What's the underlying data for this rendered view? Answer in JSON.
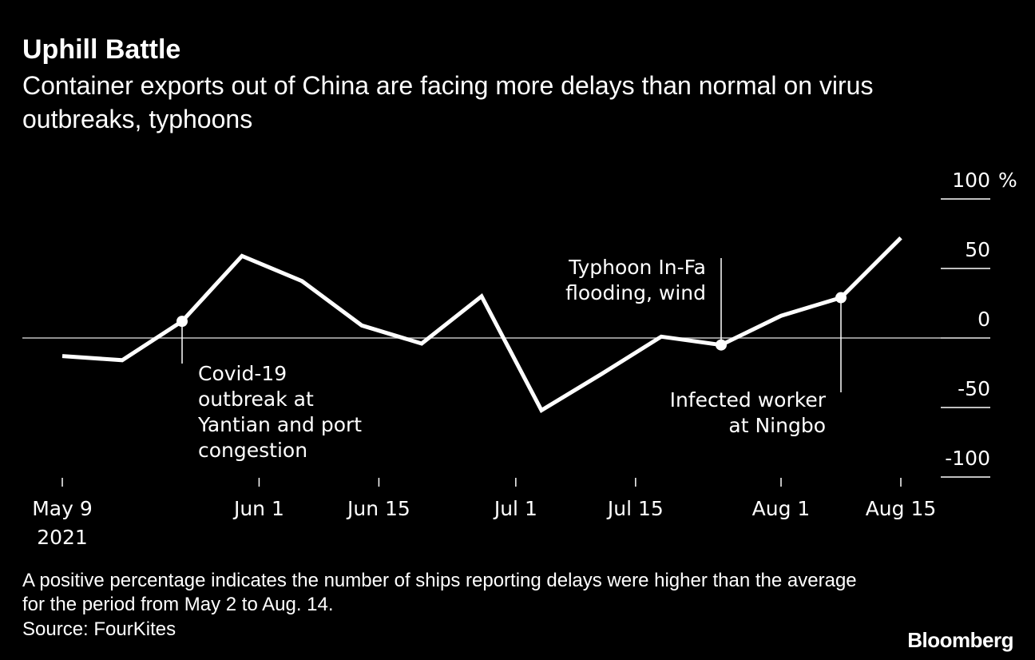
{
  "header": {
    "title": "Uphill Battle",
    "subtitle": "Container exports out of China are facing more delays than normal on virus outbreaks, typhoons"
  },
  "footer": {
    "note": "A positive percentage indicates the number of ships reporting delays were higher than the average for the period from May 2 to Aug. 14.",
    "source": "Source: FourKites",
    "brand": "Bloomberg"
  },
  "chart_data": {
    "type": "line",
    "x": [
      "2021-05-09",
      "2021-05-16",
      "2021-05-23",
      "2021-05-30",
      "2021-06-06",
      "2021-06-13",
      "2021-06-20",
      "2021-06-27",
      "2021-07-04",
      "2021-07-11",
      "2021-07-18",
      "2021-07-25",
      "2021-08-01",
      "2021-08-08",
      "2021-08-15"
    ],
    "series": [
      {
        "values": [
          -13,
          -16,
          12,
          59,
          41,
          9,
          -4,
          30,
          -52,
          -26,
          1,
          -5,
          16,
          29,
          72
        ]
      }
    ],
    "ylim": [
      -100,
      100
    ],
    "y_ticks": [
      100,
      50,
      0,
      -50,
      -100
    ],
    "y_unit": "%",
    "x_ticks": [
      {
        "date": "2021-05-09",
        "label": "May 9",
        "sublabel": "2021"
      },
      {
        "date": "2021-06-01",
        "label": "Jun 1"
      },
      {
        "date": "2021-06-15",
        "label": "Jun 15"
      },
      {
        "date": "2021-07-01",
        "label": "Jul 1"
      },
      {
        "date": "2021-07-15",
        "label": "Jul 15"
      },
      {
        "date": "2021-08-01",
        "label": "Aug 1"
      },
      {
        "date": "2021-08-15",
        "label": "Aug 15"
      }
    ],
    "annotations": [
      {
        "date": "2021-05-23",
        "value": 12,
        "lines": [
          "Covid-19",
          "outbreak at",
          "Yantian and port",
          "congestion"
        ]
      },
      {
        "date": "2021-07-25",
        "value": -5,
        "lines": [
          "Typhoon In-Fa",
          "flooding, wind"
        ]
      },
      {
        "date": "2021-08-08",
        "value": 29,
        "lines": [
          "Infected worker",
          "at Ningbo"
        ]
      }
    ],
    "zero_line": true,
    "grid": false,
    "legend": "none",
    "colors": {
      "background": "#000000",
      "line": "#ffffff",
      "text": "#ffffff",
      "zero_line": "#bfbfbf"
    }
  }
}
